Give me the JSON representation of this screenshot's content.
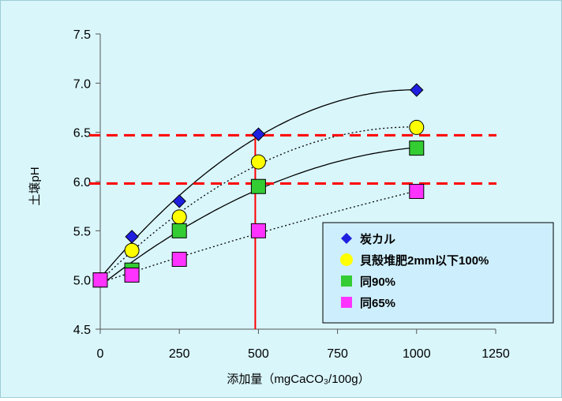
{
  "chart_data": {
    "type": "scatter",
    "xlabel": "添加量（mgCaCO₃/100g）",
    "ylabel": "土壌pH",
    "xlim": [
      0,
      1250
    ],
    "ylim": [
      4.5,
      7.5
    ],
    "x_ticks": [
      0,
      250,
      500,
      750,
      1000,
      1250
    ],
    "y_ticks": [
      "4.5",
      "5.0",
      "5.5",
      "6.0",
      "6.5",
      "7.0",
      "7.5"
    ],
    "grid": false,
    "legend_position": "bottom-right",
    "x": [
      0,
      100,
      250,
      500,
      1000
    ],
    "series": [
      {
        "name": "炭カル",
        "marker": "diamond",
        "color": "#1f1fe0",
        "trend": "solid",
        "values": [
          5.0,
          5.44,
          5.8,
          6.48,
          6.93
        ]
      },
      {
        "name": "貝殻堆肥2mm以下100%",
        "marker": "circle",
        "color": "#ffff00",
        "trend": "dotted",
        "values": [
          5.0,
          5.3,
          5.64,
          6.2,
          6.55
        ]
      },
      {
        "name": "同90%",
        "marker": "square",
        "color": "#33cc33",
        "trend": "solid",
        "values": [
          5.0,
          5.1,
          5.5,
          5.95,
          6.34
        ]
      },
      {
        "name": "同65%",
        "marker": "square",
        "color": "#ff33ff",
        "trend": "dotted",
        "values": [
          5.0,
          5.05,
          5.21,
          5.5,
          5.9
        ]
      }
    ],
    "reference_lines": {
      "horizontal_dashed": [
        6.47,
        5.98
      ],
      "vertical": 490,
      "color": "#ff0000"
    }
  }
}
